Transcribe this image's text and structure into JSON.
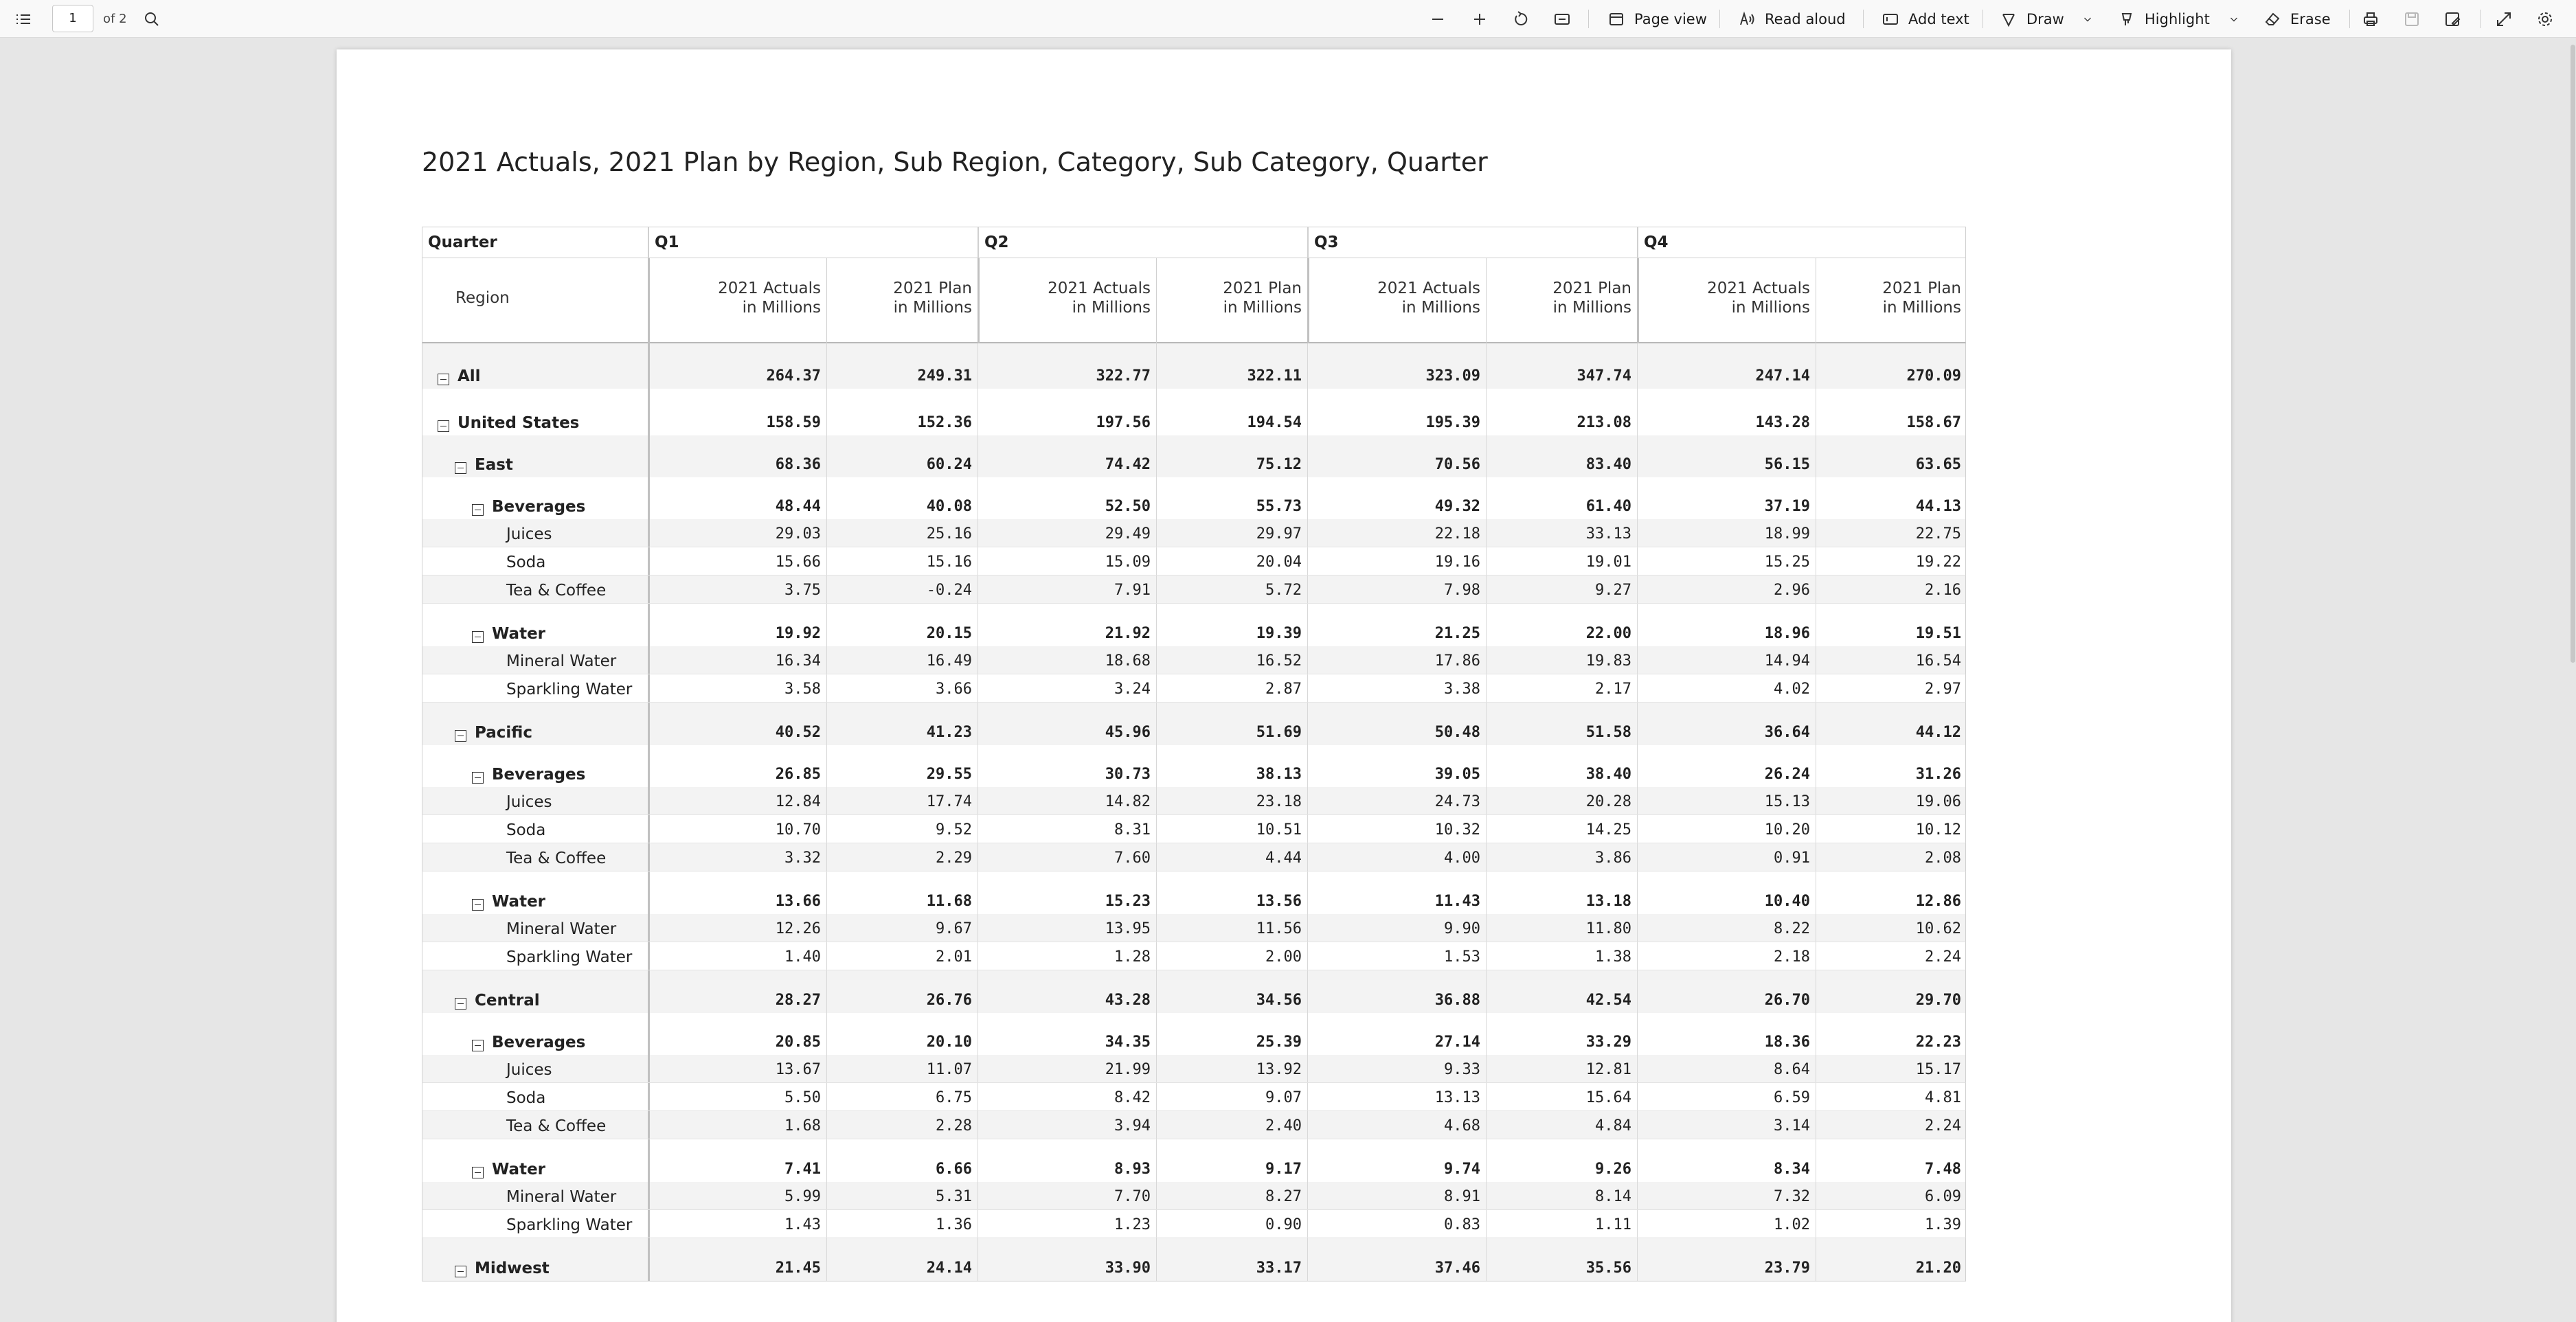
{
  "toolbar": {
    "page_number": "1",
    "page_count": "of 2",
    "page_view": "Page view",
    "read_aloud": "Read aloud",
    "add_text": "Add text",
    "draw": "Draw",
    "highlight": "Highlight",
    "erase": "Erase"
  },
  "report": {
    "title": "2021 Actuals, 2021 Plan by Region, Sub Region, Category, Sub Category, Quarter",
    "quarter_header": "Quarter",
    "region_header": "Region",
    "quarters": [
      "Q1",
      "Q2",
      "Q3",
      "Q4"
    ],
    "measures": [
      "2021 Actuals\nin Millions",
      "2021 Plan\nin Millions"
    ],
    "rows": [
      {
        "label": "All",
        "level": 0,
        "toggle": true,
        "bold": true,
        "values": [
          "264.37",
          "249.31",
          "322.77",
          "322.11",
          "323.09",
          "347.74",
          "247.14",
          "270.09"
        ]
      },
      {
        "label": "United States",
        "level": 0,
        "toggle": true,
        "bold": true,
        "values": [
          "158.59",
          "152.36",
          "197.56",
          "194.54",
          "195.39",
          "213.08",
          "143.28",
          "158.67"
        ]
      },
      {
        "label": "East",
        "level": 1,
        "toggle": true,
        "bold": true,
        "values": [
          "68.36",
          "60.24",
          "74.42",
          "75.12",
          "70.56",
          "83.40",
          "56.15",
          "63.65"
        ]
      },
      {
        "label": "Beverages",
        "level": 2,
        "toggle": true,
        "bold": true,
        "values": [
          "48.44",
          "40.08",
          "52.50",
          "55.73",
          "49.32",
          "61.40",
          "37.19",
          "44.13"
        ]
      },
      {
        "label": "Juices",
        "level": 3,
        "toggle": false,
        "bold": false,
        "values": [
          "29.03",
          "25.16",
          "29.49",
          "29.97",
          "22.18",
          "33.13",
          "18.99",
          "22.75"
        ]
      },
      {
        "label": "Soda",
        "level": 3,
        "toggle": false,
        "bold": false,
        "values": [
          "15.66",
          "15.16",
          "15.09",
          "20.04",
          "19.16",
          "19.01",
          "15.25",
          "19.22"
        ]
      },
      {
        "label": "Tea & Coffee",
        "level": 3,
        "toggle": false,
        "bold": false,
        "values": [
          "3.75",
          "-0.24",
          "7.91",
          "5.72",
          "7.98",
          "9.27",
          "2.96",
          "2.16"
        ]
      },
      {
        "label": "Water",
        "level": 2,
        "toggle": true,
        "bold": true,
        "values": [
          "19.92",
          "20.15",
          "21.92",
          "19.39",
          "21.25",
          "22.00",
          "18.96",
          "19.51"
        ]
      },
      {
        "label": "Mineral Water",
        "level": 3,
        "toggle": false,
        "bold": false,
        "values": [
          "16.34",
          "16.49",
          "18.68",
          "16.52",
          "17.86",
          "19.83",
          "14.94",
          "16.54"
        ]
      },
      {
        "label": "Sparkling Water",
        "level": 3,
        "toggle": false,
        "bold": false,
        "values": [
          "3.58",
          "3.66",
          "3.24",
          "2.87",
          "3.38",
          "2.17",
          "4.02",
          "2.97"
        ]
      },
      {
        "label": "Pacific",
        "level": 1,
        "toggle": true,
        "bold": true,
        "values": [
          "40.52",
          "41.23",
          "45.96",
          "51.69",
          "50.48",
          "51.58",
          "36.64",
          "44.12"
        ]
      },
      {
        "label": "Beverages",
        "level": 2,
        "toggle": true,
        "bold": true,
        "values": [
          "26.85",
          "29.55",
          "30.73",
          "38.13",
          "39.05",
          "38.40",
          "26.24",
          "31.26"
        ]
      },
      {
        "label": "Juices",
        "level": 3,
        "toggle": false,
        "bold": false,
        "values": [
          "12.84",
          "17.74",
          "14.82",
          "23.18",
          "24.73",
          "20.28",
          "15.13",
          "19.06"
        ]
      },
      {
        "label": "Soda",
        "level": 3,
        "toggle": false,
        "bold": false,
        "values": [
          "10.70",
          "9.52",
          "8.31",
          "10.51",
          "10.32",
          "14.25",
          "10.20",
          "10.12"
        ]
      },
      {
        "label": "Tea & Coffee",
        "level": 3,
        "toggle": false,
        "bold": false,
        "values": [
          "3.32",
          "2.29",
          "7.60",
          "4.44",
          "4.00",
          "3.86",
          "0.91",
          "2.08"
        ]
      },
      {
        "label": "Water",
        "level": 2,
        "toggle": true,
        "bold": true,
        "values": [
          "13.66",
          "11.68",
          "15.23",
          "13.56",
          "11.43",
          "13.18",
          "10.40",
          "12.86"
        ]
      },
      {
        "label": "Mineral Water",
        "level": 3,
        "toggle": false,
        "bold": false,
        "values": [
          "12.26",
          "9.67",
          "13.95",
          "11.56",
          "9.90",
          "11.80",
          "8.22",
          "10.62"
        ]
      },
      {
        "label": "Sparkling Water",
        "level": 3,
        "toggle": false,
        "bold": false,
        "values": [
          "1.40",
          "2.01",
          "1.28",
          "2.00",
          "1.53",
          "1.38",
          "2.18",
          "2.24"
        ]
      },
      {
        "label": "Central",
        "level": 1,
        "toggle": true,
        "bold": true,
        "values": [
          "28.27",
          "26.76",
          "43.28",
          "34.56",
          "36.88",
          "42.54",
          "26.70",
          "29.70"
        ]
      },
      {
        "label": "Beverages",
        "level": 2,
        "toggle": true,
        "bold": true,
        "values": [
          "20.85",
          "20.10",
          "34.35",
          "25.39",
          "27.14",
          "33.29",
          "18.36",
          "22.23"
        ]
      },
      {
        "label": "Juices",
        "level": 3,
        "toggle": false,
        "bold": false,
        "values": [
          "13.67",
          "11.07",
          "21.99",
          "13.92",
          "9.33",
          "12.81",
          "8.64",
          "15.17"
        ]
      },
      {
        "label": "Soda",
        "level": 3,
        "toggle": false,
        "bold": false,
        "values": [
          "5.50",
          "6.75",
          "8.42",
          "9.07",
          "13.13",
          "15.64",
          "6.59",
          "4.81"
        ]
      },
      {
        "label": "Tea & Coffee",
        "level": 3,
        "toggle": false,
        "bold": false,
        "values": [
          "1.68",
          "2.28",
          "3.94",
          "2.40",
          "4.68",
          "4.84",
          "3.14",
          "2.24"
        ]
      },
      {
        "label": "Water",
        "level": 2,
        "toggle": true,
        "bold": true,
        "values": [
          "7.41",
          "6.66",
          "8.93",
          "9.17",
          "9.74",
          "9.26",
          "8.34",
          "7.48"
        ]
      },
      {
        "label": "Mineral Water",
        "level": 3,
        "toggle": false,
        "bold": false,
        "values": [
          "5.99",
          "5.31",
          "7.70",
          "8.27",
          "8.91",
          "8.14",
          "7.32",
          "6.09"
        ]
      },
      {
        "label": "Sparkling Water",
        "level": 3,
        "toggle": false,
        "bold": false,
        "values": [
          "1.43",
          "1.36",
          "1.23",
          "0.90",
          "0.83",
          "1.11",
          "1.02",
          "1.39"
        ]
      },
      {
        "label": "Midwest",
        "level": 1,
        "toggle": true,
        "bold": true,
        "values": [
          "21.45",
          "24.14",
          "33.90",
          "33.17",
          "37.46",
          "35.56",
          "23.79",
          "21.20"
        ]
      }
    ]
  }
}
